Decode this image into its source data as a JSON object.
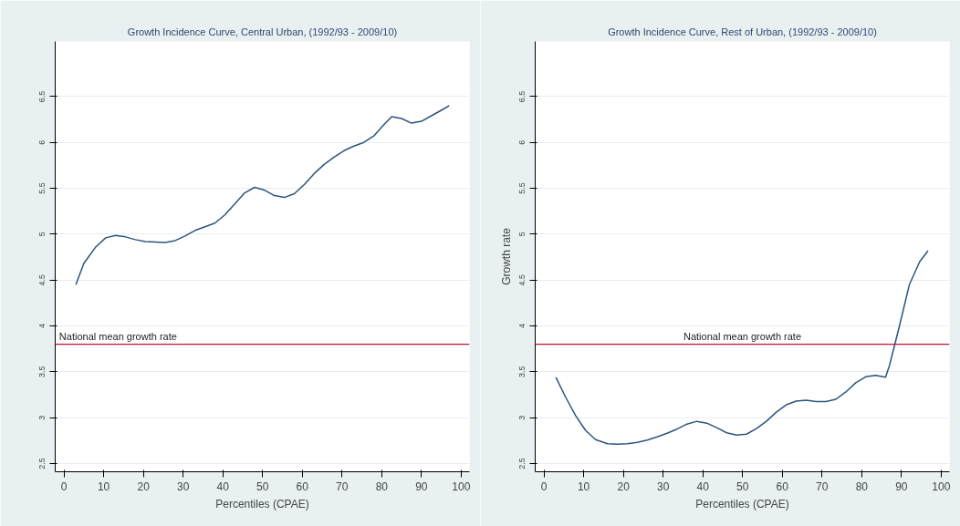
{
  "chart_data": [
    {
      "type": "line",
      "title": "Growth Incidence Curve, Central Urban, (1992/93 - 2009/10)",
      "xlabel": "Percentiles (CPAE)",
      "x": [
        3,
        5,
        8,
        10.5,
        13,
        15.5,
        18,
        20.5,
        25.5,
        28,
        30.5,
        33,
        35.5,
        38,
        40.5,
        43,
        45.5,
        48,
        50.5,
        53,
        55.5,
        58,
        60.5,
        63,
        65.5,
        68,
        70.5,
        73,
        75.5,
        78,
        80.5,
        82.5,
        85,
        87.5,
        90,
        92.5,
        95,
        97
      ],
      "series": [
        {
          "color": "#2b557f",
          "values": [
            4.45,
            4.68,
            4.86,
            4.96,
            4.985,
            4.97,
            4.94,
            4.92,
            4.91,
            4.93,
            4.98,
            5.04,
            5.08,
            5.12,
            5.21,
            5.33,
            5.45,
            5.51,
            5.48,
            5.42,
            5.4,
            5.44,
            5.54,
            5.66,
            5.76,
            5.84,
            5.91,
            5.96,
            6.0,
            6.07,
            6.19,
            6.28,
            6.26,
            6.21,
            6.23,
            6.29,
            6.35,
            6.4
          ]
        }
      ],
      "ref_lines": [
        {
          "axis": "y",
          "value": 3.8,
          "label": "National mean growth rate",
          "color": "#c8102e"
        }
      ],
      "xlim": [
        -2.2,
        102.1
      ],
      "ylim": [
        2.41,
        7.1
      ],
      "xticks": [
        0,
        10,
        20,
        30,
        40,
        50,
        60,
        70,
        80,
        90,
        100
      ],
      "yticks": [
        2.5,
        3,
        3.5,
        4,
        4.5,
        5,
        5.5,
        6,
        6.5
      ],
      "grid": "y"
    },
    {
      "type": "line",
      "title": "Growth Incidence Curve, Rest of Urban, (1992/93 - 2009/10)",
      "xlabel": "Percentiles (CPAE)",
      "ylabel": "Growth rate",
      "x": [
        3,
        5.5,
        8,
        10.5,
        13,
        16,
        18.5,
        21,
        23.5,
        26,
        28.5,
        31,
        33.5,
        36,
        38.5,
        41,
        43.5,
        46,
        48.5,
        51,
        53.5,
        56,
        58.5,
        61,
        63.5,
        66,
        68.5,
        71,
        73.5,
        76,
        78.5,
        81,
        83.5,
        86,
        87,
        89.5,
        92,
        94.6,
        96.7
      ],
      "series": [
        {
          "color": "#2b557f",
          "values": [
            3.44,
            3.22,
            3.02,
            2.86,
            2.76,
            2.715,
            2.71,
            2.715,
            2.73,
            2.755,
            2.79,
            2.83,
            2.875,
            2.93,
            2.96,
            2.94,
            2.89,
            2.835,
            2.81,
            2.82,
            2.88,
            2.96,
            3.06,
            3.14,
            3.18,
            3.19,
            3.175,
            3.175,
            3.2,
            3.28,
            3.38,
            3.445,
            3.46,
            3.44,
            3.57,
            4.0,
            4.45,
            4.7,
            4.82
          ]
        }
      ],
      "ref_lines": [
        {
          "axis": "y",
          "value": 3.8,
          "label": "National mean growth rate",
          "color": "#c8102e"
        }
      ],
      "xlim": [
        -2.2,
        102.1
      ],
      "ylim": [
        2.41,
        7.1
      ],
      "xticks": [
        0,
        10,
        20,
        30,
        40,
        50,
        60,
        70,
        80,
        90,
        100
      ],
      "yticks": [
        2.5,
        3,
        3.5,
        4,
        4.5,
        5,
        5.5,
        6,
        6.5
      ],
      "grid": "y"
    }
  ]
}
